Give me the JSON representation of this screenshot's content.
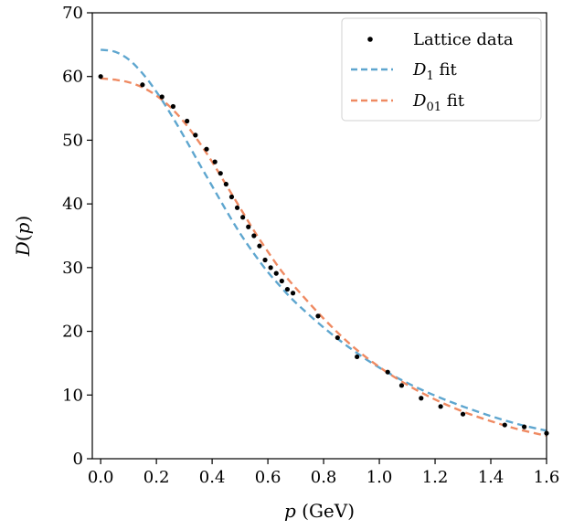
{
  "chart_data": {
    "type": "scatter",
    "title": "",
    "xlabel": {
      "var": "p",
      "unit": " (GeV)"
    },
    "ylabel": {
      "pre": "D(",
      "var": "p",
      "post": ")",
      "fname": "D"
    },
    "xlim": [
      -0.03,
      1.6
    ],
    "ylim": [
      0,
      70
    ],
    "xticks": [
      0.0,
      0.2,
      0.4,
      0.6,
      0.8,
      1.0,
      1.2,
      1.4,
      1.6
    ],
    "xtick_labels": [
      "0.0",
      "0.2",
      "0.4",
      "0.6",
      "0.8",
      "1.0",
      "1.2",
      "1.4",
      "1.6"
    ],
    "yticks": [
      0,
      10,
      20,
      30,
      40,
      50,
      60,
      70
    ],
    "ytick_labels": [
      "0",
      "10",
      "20",
      "30",
      "40",
      "50",
      "60",
      "70"
    ],
    "grid": false,
    "legend_position": "top-right",
    "series": [
      {
        "name": "Lattice data",
        "kind": "scatter",
        "color": "#000000",
        "x": [
          0.0,
          0.15,
          0.22,
          0.26,
          0.31,
          0.34,
          0.38,
          0.41,
          0.43,
          0.45,
          0.47,
          0.49,
          0.51,
          0.53,
          0.55,
          0.57,
          0.59,
          0.61,
          0.63,
          0.65,
          0.67,
          0.69,
          0.78,
          0.85,
          0.92,
          1.03,
          1.08,
          1.15,
          1.22,
          1.3,
          1.45,
          1.52,
          1.6
        ],
        "y": [
          60.0,
          58.7,
          56.8,
          55.3,
          53.0,
          50.8,
          48.6,
          46.6,
          44.8,
          43.1,
          41.1,
          39.4,
          37.9,
          36.4,
          35.0,
          33.4,
          31.2,
          30.0,
          29.1,
          27.9,
          26.6,
          26.0,
          22.4,
          19.0,
          16.0,
          13.6,
          11.5,
          9.5,
          8.2,
          7.0,
          5.3,
          5.0,
          4.0
        ]
      },
      {
        "name": {
          "sym": "D",
          "sub": "1",
          "tail": " fit"
        },
        "kind": "line",
        "dashed": true,
        "color": "#5ea6cf",
        "x": [
          0.0,
          0.05,
          0.1,
          0.15,
          0.2,
          0.25,
          0.3,
          0.35,
          0.4,
          0.45,
          0.5,
          0.55,
          0.6,
          0.65,
          0.7,
          0.8,
          0.9,
          1.0,
          1.1,
          1.2,
          1.3,
          1.4,
          1.5,
          1.6
        ],
        "y": [
          64.2,
          63.9,
          62.7,
          60.5,
          57.6,
          54.2,
          50.5,
          46.6,
          42.8,
          39.0,
          35.4,
          32.2,
          29.3,
          26.8,
          24.5,
          20.6,
          17.2,
          14.3,
          11.9,
          9.9,
          8.2,
          6.7,
          5.4,
          4.4
        ]
      },
      {
        "name": {
          "sym": "D",
          "sub": "01",
          "tail": " fit"
        },
        "kind": "line",
        "dashed": true,
        "color": "#ef8a62",
        "x": [
          0.0,
          0.05,
          0.1,
          0.15,
          0.2,
          0.25,
          0.3,
          0.35,
          0.4,
          0.45,
          0.5,
          0.55,
          0.6,
          0.65,
          0.7,
          0.8,
          0.9,
          1.0,
          1.1,
          1.2,
          1.3,
          1.4,
          1.5,
          1.6
        ],
        "y": [
          59.7,
          59.5,
          59.1,
          58.3,
          57.0,
          55.2,
          52.8,
          49.9,
          46.6,
          43.0,
          39.4,
          35.8,
          32.5,
          29.4,
          26.8,
          22.0,
          17.8,
          14.4,
          11.6,
          9.3,
          7.4,
          5.9,
          4.6,
          3.6
        ]
      }
    ]
  }
}
